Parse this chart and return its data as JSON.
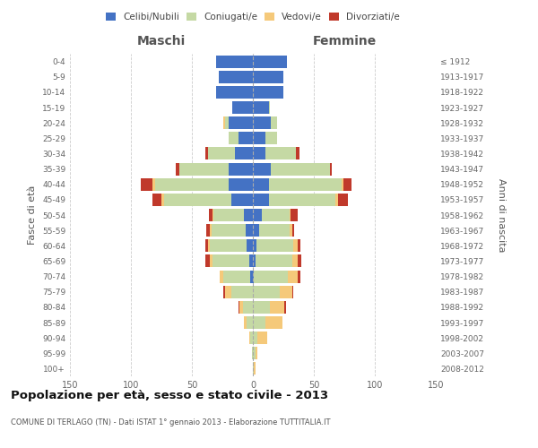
{
  "age_groups": [
    "0-4",
    "5-9",
    "10-14",
    "15-19",
    "20-24",
    "25-29",
    "30-34",
    "35-39",
    "40-44",
    "45-49",
    "50-54",
    "55-59",
    "60-64",
    "65-69",
    "70-74",
    "75-79",
    "80-84",
    "85-89",
    "90-94",
    "95-99",
    "100+"
  ],
  "birth_years": [
    "2008-2012",
    "2003-2007",
    "1998-2002",
    "1993-1997",
    "1988-1992",
    "1983-1987",
    "1978-1982",
    "1973-1977",
    "1968-1972",
    "1963-1967",
    "1958-1962",
    "1953-1957",
    "1948-1952",
    "1943-1947",
    "1938-1942",
    "1933-1937",
    "1928-1932",
    "1923-1927",
    "1918-1922",
    "1913-1917",
    "≤ 1912"
  ],
  "male": {
    "celibe": [
      30,
      28,
      30,
      17,
      20,
      12,
      15,
      20,
      20,
      18,
      7,
      6,
      5,
      3,
      2,
      0,
      0,
      0,
      0,
      0,
      0
    ],
    "coniugato": [
      0,
      0,
      0,
      0,
      3,
      8,
      22,
      40,
      60,
      55,
      25,
      28,
      30,
      30,
      22,
      18,
      8,
      5,
      2,
      1,
      0
    ],
    "vedovo": [
      0,
      0,
      0,
      0,
      1,
      0,
      0,
      0,
      2,
      2,
      1,
      1,
      2,
      2,
      3,
      5,
      3,
      2,
      1,
      0,
      0
    ],
    "divorziato": [
      0,
      0,
      0,
      0,
      0,
      0,
      2,
      3,
      10,
      7,
      3,
      3,
      2,
      4,
      0,
      1,
      1,
      0,
      0,
      0,
      0
    ]
  },
  "female": {
    "nubile": [
      28,
      25,
      25,
      13,
      15,
      10,
      10,
      15,
      13,
      13,
      7,
      5,
      3,
      2,
      1,
      0,
      0,
      0,
      0,
      0,
      0
    ],
    "coniugata": [
      0,
      0,
      0,
      1,
      5,
      10,
      25,
      48,
      60,
      55,
      23,
      25,
      30,
      30,
      28,
      22,
      14,
      10,
      4,
      2,
      1
    ],
    "vedova": [
      0,
      0,
      0,
      0,
      0,
      0,
      0,
      0,
      1,
      2,
      1,
      2,
      4,
      5,
      8,
      10,
      12,
      14,
      8,
      2,
      1
    ],
    "divorziata": [
      0,
      0,
      0,
      0,
      0,
      0,
      3,
      2,
      7,
      8,
      6,
      2,
      2,
      3,
      2,
      1,
      1,
      0,
      0,
      0,
      0
    ]
  },
  "colors": {
    "celibe_nubile": "#4472C4",
    "coniugato": "#C5D9A4",
    "vedovo": "#F5C97A",
    "divorziato": "#C0392B"
  },
  "xlim": 150,
  "title": "Popolazione per età, sesso e stato civile - 2013",
  "subtitle": "COMUNE DI TERLAGO (TN) - Dati ISTAT 1° gennaio 2013 - Elaborazione TUTTITALIA.IT",
  "ylabel_left": "Fasce di età",
  "ylabel_right": "Anni di nascita",
  "xlabel_left": "Maschi",
  "xlabel_right": "Femmine"
}
